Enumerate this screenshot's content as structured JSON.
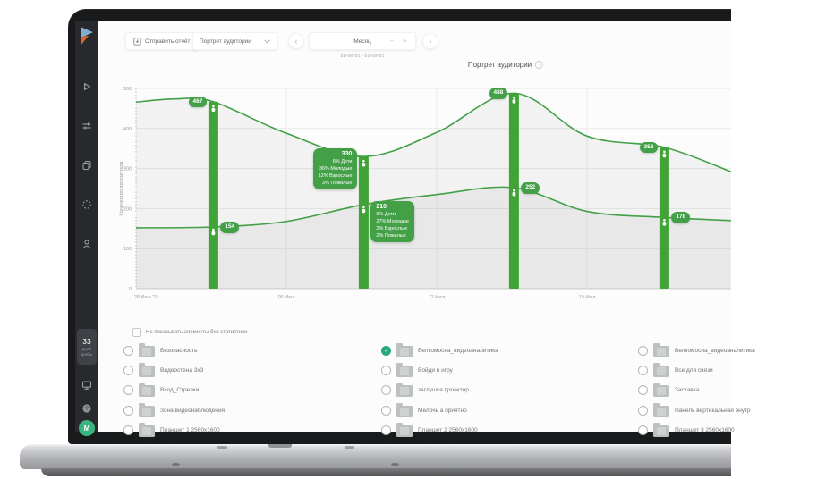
{
  "colors": {
    "accent_green": "#43a047",
    "bar_green": "#3fa435",
    "checked_teal": "#27a77c",
    "avatar_green": "#36b57e",
    "sidebar_bg": "#27292c"
  },
  "icons": {
    "info": "?",
    "help": "?",
    "prev": "‹",
    "next": "›",
    "minus": "−",
    "plus": "+"
  },
  "sidebar": {
    "nav_icons": [
      "play",
      "filters",
      "documents",
      "scan",
      "profile"
    ],
    "footer_icons": [
      "display",
      "help"
    ],
    "trial_badge": {
      "days": "33",
      "line1": "дней",
      "line2": "пробы."
    },
    "avatar_letter": "М"
  },
  "toolbar": {
    "send_report_label": "Отправить отчёт",
    "view_selector_value": "Портрет аудитории",
    "period_label": "Месяц",
    "date_range": "28-06-21 - 01-08-21"
  },
  "chart": {
    "title": "Портрет аудитории",
    "y_label": "Количество просмотров"
  },
  "chart_data": {
    "type": "line",
    "title": "Портрет аудитории",
    "ylabel": "Количество просмотров",
    "ylim": [
      0,
      500
    ],
    "y_ticks": [
      0,
      100,
      200,
      300,
      400,
      500
    ],
    "x_range_days": [
      0,
      27.7
    ],
    "x_ticks": [
      {
        "day": 0,
        "label": "28 Июн '21"
      },
      {
        "day": 7,
        "label": "05 Июл"
      },
      {
        "day": 14,
        "label": "12 Июл"
      },
      {
        "day": 21,
        "label": "19 Июл"
      }
    ],
    "grid": true,
    "legend": "none",
    "series": [
      {
        "name": "line-upper",
        "points": [
          [
            0,
            466
          ],
          [
            1.8,
            474
          ],
          [
            3.6,
            467
          ],
          [
            7,
            388
          ],
          [
            10.6,
            330
          ],
          [
            14,
            390
          ],
          [
            17.6,
            488
          ],
          [
            21,
            381
          ],
          [
            24.6,
            353
          ],
          [
            27.7,
            292
          ]
        ]
      },
      {
        "name": "line-lower",
        "points": [
          [
            0,
            152
          ],
          [
            3.6,
            154
          ],
          [
            7,
            168
          ],
          [
            10.6,
            210
          ],
          [
            14,
            235
          ],
          [
            17.6,
            252
          ],
          [
            21,
            193
          ],
          [
            24.6,
            178
          ],
          [
            27.7,
            170
          ]
        ]
      }
    ],
    "markers": [
      {
        "day": 3.6,
        "upper": {
          "value": 467
        },
        "lower": {
          "value": 154
        }
      },
      {
        "day": 10.6,
        "upper": {
          "value": 330,
          "breakdown": [
            "8% Дети",
            "36% Молодые",
            "12% Взрослые",
            "3% Пожилые"
          ]
        },
        "lower": {
          "value": 210,
          "breakdown": [
            "9% Дети",
            "27% Молодые",
            "2% Взрослые",
            "2% Пожилые"
          ]
        }
      },
      {
        "day": 17.6,
        "upper": {
          "value": 488
        },
        "lower": {
          "value": 252
        }
      },
      {
        "day": 24.6,
        "upper": {
          "value": 353
        },
        "lower": {
          "value": 178
        }
      }
    ]
  },
  "filters": {
    "hide_without_stats_label": "Не показывать элементы без статистики",
    "columns": [
      [
        {
          "label": "Безопасность",
          "checked": false
        },
        {
          "label": "Видеостена 3x3",
          "checked": false
        },
        {
          "label": "Вход_Стрелки",
          "checked": false
        },
        {
          "label": "Зона видеонаблюдения",
          "checked": false
        },
        {
          "label": "Планшет 1 2560x1600",
          "checked": false
        }
      ],
      [
        {
          "label": "Белкомосна_видеоаналитика",
          "checked": true
        },
        {
          "label": "Войди в игру",
          "checked": false
        },
        {
          "label": "заглушка проектор",
          "checked": false
        },
        {
          "label": "Мелочь а приятно",
          "checked": false
        },
        {
          "label": "Планшет 2 2560x1600",
          "checked": false
        }
      ],
      [
        {
          "label": "Велкомосна_видеоаналитика",
          "checked": false
        },
        {
          "label": "Все для связи",
          "checked": false
        },
        {
          "label": "Заставка",
          "checked": false
        },
        {
          "label": "Панель вертикальная внутр",
          "checked": false
        },
        {
          "label": "Планшет 3 2560x1600",
          "checked": false
        }
      ]
    ]
  }
}
